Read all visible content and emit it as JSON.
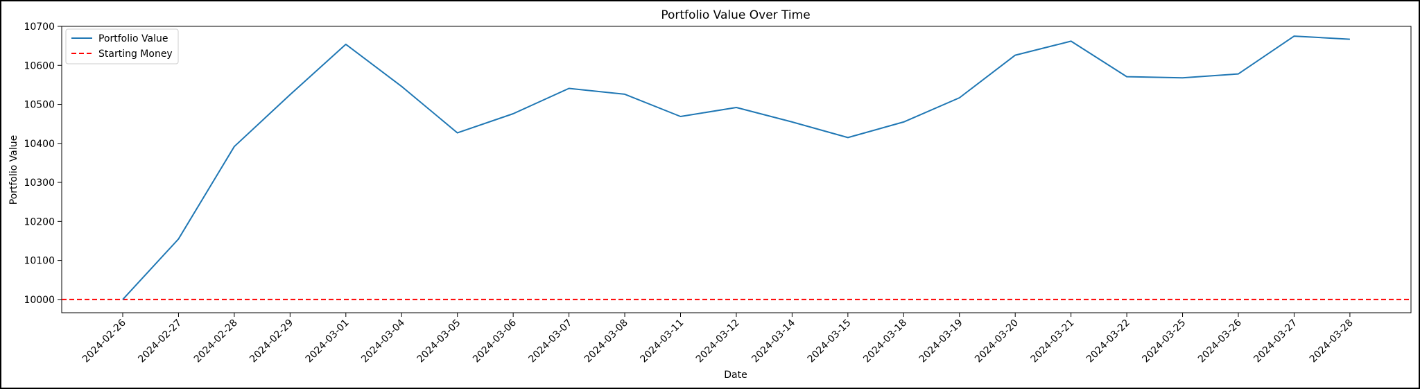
{
  "chart_data": {
    "type": "line",
    "title": "Portfolio Value Over Time",
    "xlabel": "Date",
    "ylabel": "Portfolio Value",
    "x": [
      "2024-02-26",
      "2024-02-27",
      "2024-02-28",
      "2024-02-29",
      "2024-03-01",
      "2024-03-04",
      "2024-03-05",
      "2024-03-06",
      "2024-03-07",
      "2024-03-08",
      "2024-03-11",
      "2024-03-12",
      "2024-03-14",
      "2024-03-15",
      "2024-03-18",
      "2024-03-19",
      "2024-03-20",
      "2024-03-21",
      "2024-03-22",
      "2024-03-25",
      "2024-03-26",
      "2024-03-27",
      "2024-03-28"
    ],
    "series": [
      {
        "name": "Portfolio Value",
        "color": "#1f77b4",
        "style": "solid",
        "values": [
          10000,
          10155,
          10392,
          10525,
          10654,
          10546,
          10427,
          10476,
          10541,
          10526,
          10469,
          10492,
          10455,
          10415,
          10455,
          10517,
          10626,
          10662,
          10571,
          10568,
          10578,
          10675,
          10667
        ]
      }
    ],
    "reference_lines": [
      {
        "name": "Starting Money",
        "value": 10000,
        "color": "#ff0000",
        "style": "dashed"
      }
    ],
    "yticks": [
      10000,
      10100,
      10200,
      10300,
      10400,
      10500,
      10600,
      10700
    ],
    "ylim": [
      9966,
      10700
    ],
    "grid": false,
    "legend_position": "top-left"
  }
}
